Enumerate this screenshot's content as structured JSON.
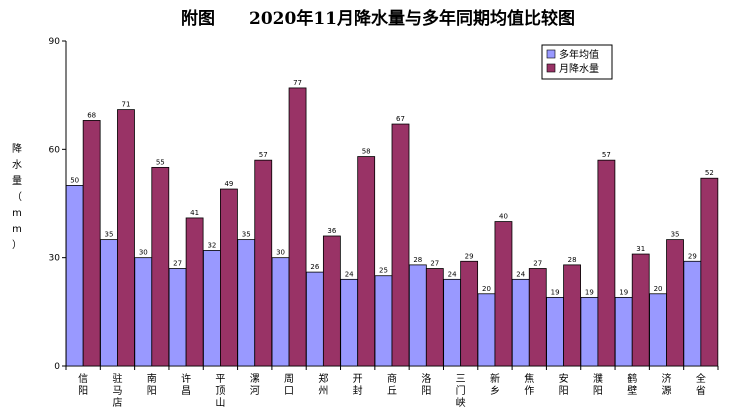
{
  "chart_data": {
    "type": "bar",
    "title": "附图　　2020年11月降水量与多年同期均值比较图",
    "ylabel": "降水量（mm）",
    "ylim": [
      0,
      90
    ],
    "yticks": [
      0,
      30,
      60,
      90
    ],
    "grid": false,
    "legend_position": "top-right",
    "categories": [
      "信阳",
      "驻马店",
      "南阳",
      "许昌",
      "平顶山",
      "漯河",
      "周口",
      "郑州",
      "开封",
      "商丘",
      "洛阳",
      "三门峡",
      "新乡",
      "焦作",
      "安阳",
      "濮阳",
      "鹤壁",
      "济源",
      "全省"
    ],
    "series": [
      {
        "name": "多年均值",
        "color": "#9999FF",
        "values": [
          50,
          35,
          30,
          27,
          32,
          35,
          30,
          26,
          24,
          25,
          28,
          24,
          20,
          24,
          19,
          19,
          19,
          20,
          29
        ]
      },
      {
        "name": "月降水量",
        "color": "#993366",
        "values": [
          68,
          71,
          55,
          41,
          49,
          57,
          77,
          36,
          58,
          67,
          27,
          29,
          40,
          27,
          28,
          57,
          31,
          35,
          52
        ]
      }
    ]
  }
}
